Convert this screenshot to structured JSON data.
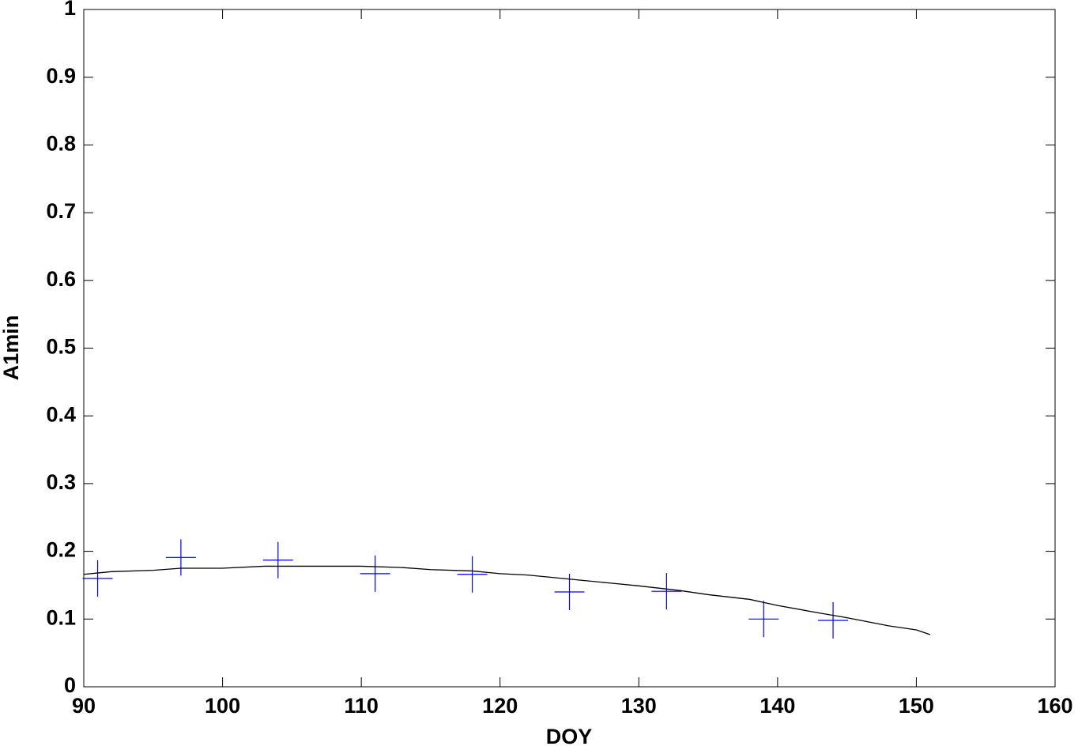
{
  "chart_data": {
    "type": "line",
    "xlabel": "DOY",
    "ylabel": "A1min",
    "xlim": [
      90,
      160
    ],
    "xticks": [
      90,
      100,
      110,
      120,
      130,
      140,
      150,
      160
    ],
    "ylim": [
      0,
      1
    ],
    "yticks": [
      0,
      0.1,
      0.2,
      0.3,
      0.4,
      0.5,
      0.6,
      0.7,
      0.8,
      0.9,
      1
    ],
    "grid": false,
    "series": [
      {
        "color": "#0000ff",
        "marker": "+",
        "linestyle": "none",
        "x": [
          91,
          97,
          104,
          111,
          118,
          125,
          132,
          139,
          144
        ],
        "values": [
          0.16,
          0.191,
          0.187,
          0.167,
          0.166,
          0.14,
          0.141,
          0.1,
          0.098
        ]
      },
      {
        "color": "#000000",
        "marker": "none",
        "linestyle": "solid",
        "x": [
          90,
          92,
          95,
          97,
          100,
          103,
          105,
          110,
          113,
          115,
          118,
          120,
          122,
          125,
          128,
          130,
          133,
          135,
          138,
          140,
          143,
          145,
          148,
          150,
          151
        ],
        "values": [
          0.166,
          0.17,
          0.172,
          0.175,
          0.175,
          0.178,
          0.178,
          0.178,
          0.176,
          0.173,
          0.171,
          0.167,
          0.165,
          0.159,
          0.153,
          0.149,
          0.142,
          0.136,
          0.129,
          0.12,
          0.109,
          0.102,
          0.09,
          0.084,
          0.077
        ]
      }
    ]
  }
}
